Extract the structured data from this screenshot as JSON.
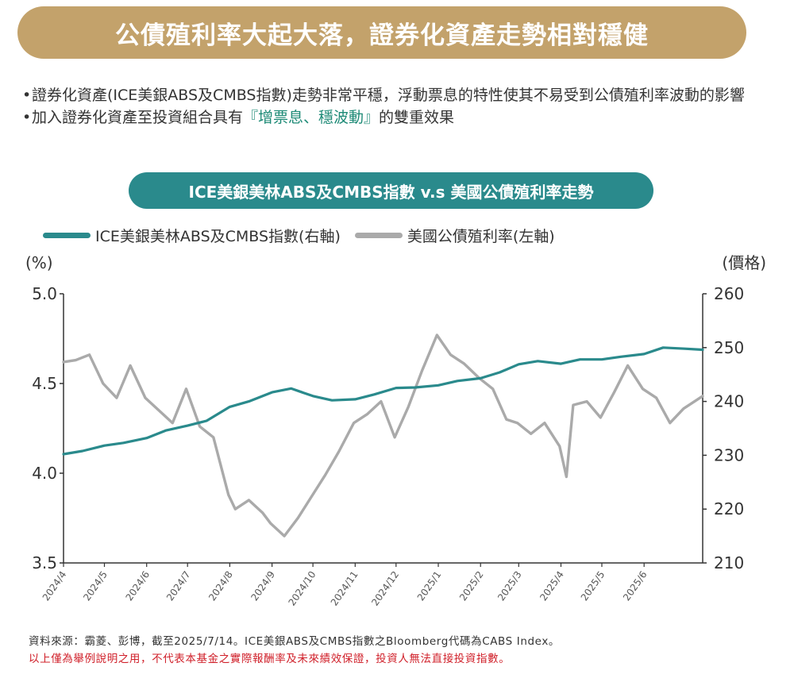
{
  "header": {
    "title": "公債殖利率大起大落，證券化資產走勢相對穩健"
  },
  "bullets": {
    "b1": "證券化資產(ICE美銀ABS及CMBS指數)走勢非常平穩，浮動票息的特性使其不易受到公債殖利率波動的影響",
    "b2_pre": "加入證券化資產至投資組合具有",
    "b2_hl": "『增票息、穩波動』",
    "b2_post": "的雙重效果"
  },
  "chart_title": "ICE美銀美林ABS及CMBS指數 v.s 美國公債殖利率走勢",
  "footer": {
    "source": "資料來源：霸菱、彭博，截至2025/7/14。ICE美銀ABS及CMBS指數之Bloomberg代碼為CABS Index。",
    "disclaimer": "以上僅為舉例說明之用，不代表本基金之實際報酬率及未來績效保證，投資人無法直接投資指數。"
  },
  "colors": {
    "gold": "#c3a26b",
    "teal": "#2a8a8c",
    "gray": "#aaaaaa",
    "highlight": "#1d8a76",
    "disclaimer": "#d0202a"
  },
  "chart_data": {
    "type": "line",
    "left_unit": "(%)",
    "right_unit": "(價格)",
    "x": [
      "2024/4",
      "2024/5",
      "2024/6",
      "2024/7",
      "2024/8",
      "2024/9",
      "2024/10",
      "2024/11",
      "2024/12",
      "2025/1",
      "2025/2",
      "2025/3",
      "2025/4",
      "2025/5",
      "2025/6"
    ],
    "x_tick_labels": [
      "2024/4",
      "2024/5",
      "2024/6",
      "2024/7",
      "2024/8",
      "2024/9",
      "2024/10",
      "2024/11",
      "2024/12",
      "2025/1",
      "2025/2",
      "2025/3",
      "2025/4",
      "2025/5",
      "2025/6"
    ],
    "y_left_ticks": [
      "5.0",
      "4.5",
      "4.0",
      "3.5"
    ],
    "y_left_range": [
      3.5,
      5.0
    ],
    "y_right_ticks": [
      "260",
      "250",
      "240",
      "230",
      "220",
      "210"
    ],
    "y_right_range": [
      210,
      260
    ],
    "grid": false,
    "legend_position": "top-left",
    "series": [
      {
        "name": "ICE美銀美林ABS及CMBS指數(右軸)",
        "axis": "right",
        "color": "#2a8a8c",
        "x": [
          "2024-04-01",
          "2024-04-15",
          "2024-05-01",
          "2024-05-15",
          "2024-06-01",
          "2024-06-15",
          "2024-07-01",
          "2024-07-15",
          "2024-08-01",
          "2024-08-15",
          "2024-09-01",
          "2024-09-15",
          "2024-10-01",
          "2024-10-15",
          "2024-11-01",
          "2024-11-15",
          "2024-12-01",
          "2024-12-15",
          "2025-01-01",
          "2025-01-15",
          "2025-02-01",
          "2025-02-15",
          "2025-03-01",
          "2025-03-15",
          "2025-04-01",
          "2025-04-15",
          "2025-05-01",
          "2025-05-15",
          "2025-06-01",
          "2025-06-15",
          "2025-07-01",
          "2025-07-14"
        ],
        "values": [
          230.2,
          230.8,
          231.8,
          232.3,
          233.2,
          234.6,
          235.5,
          236.4,
          239.0,
          240.0,
          241.7,
          242.4,
          241.0,
          240.2,
          240.4,
          241.3,
          242.5,
          242.6,
          243.0,
          243.8,
          244.3,
          245.4,
          246.9,
          247.5,
          247.0,
          247.8,
          247.8,
          248.3,
          248.8,
          250.0,
          249.8,
          249.6
        ]
      },
      {
        "name": "美國公債殖利率(左軸)",
        "axis": "left",
        "color": "#aaaaaa",
        "x": [
          "2024-04-01",
          "2024-04-10",
          "2024-04-20",
          "2024-04-30",
          "2024-05-10",
          "2024-05-20",
          "2024-05-31",
          "2024-06-10",
          "2024-06-20",
          "2024-06-30",
          "2024-07-10",
          "2024-07-20",
          "2024-07-31",
          "2024-08-05",
          "2024-08-15",
          "2024-08-25",
          "2024-08-31",
          "2024-09-10",
          "2024-09-20",
          "2024-09-30",
          "2024-10-10",
          "2024-10-20",
          "2024-10-31",
          "2024-11-10",
          "2024-11-20",
          "2024-11-30",
          "2024-12-10",
          "2024-12-20",
          "2024-12-31",
          "2025-01-10",
          "2025-01-20",
          "2025-01-31",
          "2025-02-10",
          "2025-02-20",
          "2025-02-28",
          "2025-03-10",
          "2025-03-20",
          "2025-03-31",
          "2025-04-05",
          "2025-04-10",
          "2025-04-20",
          "2025-04-30",
          "2025-05-10",
          "2025-05-20",
          "2025-05-31",
          "2025-06-10",
          "2025-06-20",
          "2025-06-30",
          "2025-07-14"
        ],
        "values": [
          4.62,
          4.63,
          4.66,
          4.5,
          4.42,
          4.6,
          4.42,
          4.35,
          4.28,
          4.47,
          4.26,
          4.2,
          3.88,
          3.8,
          3.85,
          3.78,
          3.72,
          3.65,
          3.75,
          3.87,
          3.99,
          4.12,
          4.28,
          4.33,
          4.4,
          4.2,
          4.37,
          4.57,
          4.77,
          4.66,
          4.61,
          4.53,
          4.47,
          4.3,
          4.28,
          4.22,
          4.28,
          4.15,
          3.98,
          4.38,
          4.4,
          4.31,
          4.45,
          4.6,
          4.47,
          4.42,
          4.28,
          4.36,
          4.43
        ]
      }
    ]
  }
}
